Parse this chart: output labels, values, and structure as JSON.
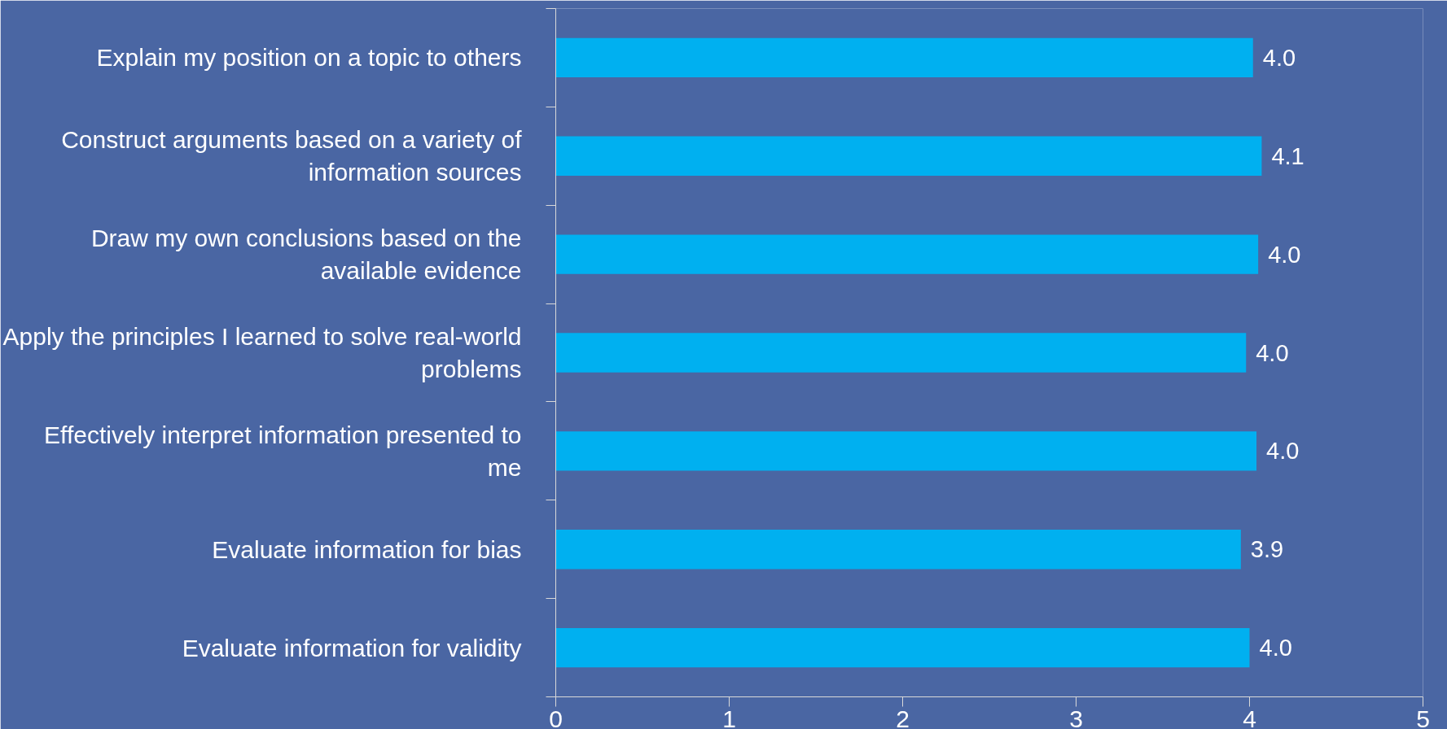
{
  "chart_data": {
    "type": "bar",
    "orientation": "horizontal",
    "categories": [
      "Explain my position on a topic to others",
      "Construct arguments based on a variety of\ninformation sources",
      "Draw my own conclusions based on the\navailable evidence",
      "Apply the principles I learned to solve real-world\nproblems",
      "Effectively interpret information presented to\nme",
      "Evaluate information for bias",
      "Evaluate information for validity"
    ],
    "values": [
      4.02,
      4.07,
      4.05,
      3.98,
      4.04,
      3.95,
      4.0
    ],
    "value_labels": [
      "4.0",
      "4.1",
      "4.0",
      "4.0",
      "4.0",
      "3.9",
      "4.0"
    ],
    "color": "#00b0f0",
    "xlim": [
      0,
      5
    ],
    "xticks": [
      0,
      1,
      2,
      3,
      4,
      5
    ],
    "grid": false
  }
}
